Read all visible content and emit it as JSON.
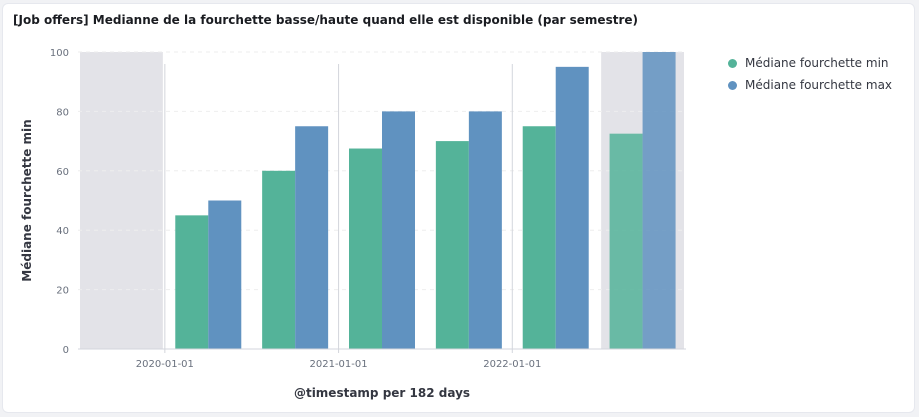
{
  "panel": {
    "title": "[Job offers] Medianne de la fourchette basse/haute quand elle est disponible (par semestre)"
  },
  "colors": {
    "min": "#54b399",
    "max": "#6092c0",
    "shaded_region": "#e3e3e8",
    "grid": "#eeeeee",
    "axis_text": "#69707d",
    "axis_title": "#343741"
  },
  "chart_data": {
    "type": "bar",
    "title": "",
    "xlabel": "@timestamp per 182 days",
    "ylabel": "Médiane fourchette min",
    "ylim": [
      0,
      100
    ],
    "yticks": [
      "0",
      "20",
      "40",
      "60",
      "80",
      "100"
    ],
    "xtick_labels": [
      "2020-01-01",
      "2021-01-01",
      "2022-01-01"
    ],
    "grid": true,
    "legend_position": "right",
    "categories": [
      "2019-S2",
      "2020-S1",
      "2020-S2",
      "2021-S1",
      "2021-S2",
      "2022-S1",
      "2022-S2"
    ],
    "partial_buckets": [
      "2019-S2",
      "2022-S2"
    ],
    "series": [
      {
        "name": "Médiane fourchette min",
        "key": "min",
        "values": [
          null,
          45,
          60,
          67.5,
          70,
          75,
          72.5
        ]
      },
      {
        "name": "Médiane fourchette max",
        "key": "max",
        "values": [
          null,
          50,
          75,
          80,
          80,
          95,
          100
        ]
      }
    ]
  }
}
